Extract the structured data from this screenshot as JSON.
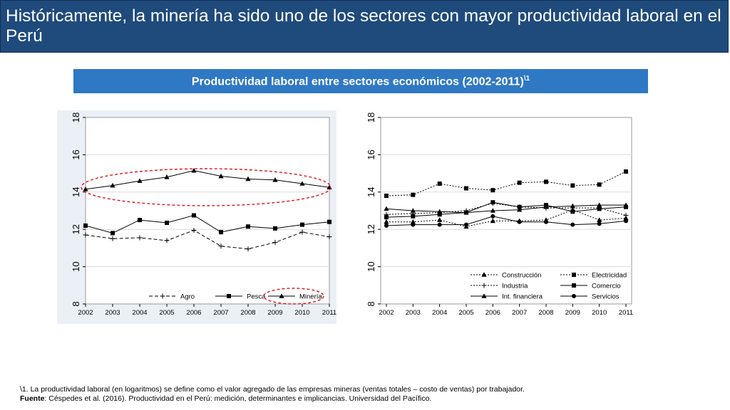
{
  "header": {
    "title": "Históricamente, la minería ha sido uno de los sectores con mayor productividad laboral en el Perú"
  },
  "subtitle": {
    "text": "Productividad laboral entre sectores económicos (2002-2011)",
    "sup": "\\1"
  },
  "colors": {
    "title_bg": "#1f4a7c",
    "subtitle_bg": "#2f78c4",
    "highlight": "#e0141e"
  },
  "chart_data": [
    {
      "type": "line",
      "title": "",
      "xlabel": "",
      "ylabel": "",
      "x": [
        "2002",
        "2003",
        "2004",
        "2005",
        "2006",
        "2007",
        "2008",
        "2009",
        "2010",
        "2011"
      ],
      "ylim": [
        8,
        18
      ],
      "yticks": [
        "8",
        "10",
        "12",
        "14",
        "16",
        "18"
      ],
      "series": [
        {
          "name": "Agro",
          "line": "dash",
          "marker": "plus",
          "values": [
            11.7,
            11.5,
            11.55,
            11.4,
            11.95,
            11.1,
            10.95,
            11.3,
            11.85,
            11.6
          ]
        },
        {
          "name": "Pesca",
          "line": "solid",
          "marker": "square",
          "values": [
            12.2,
            11.8,
            12.5,
            12.35,
            12.75,
            11.85,
            12.15,
            12.05,
            12.25,
            12.4
          ]
        },
        {
          "name": "Minería",
          "line": "solid",
          "marker": "triangle",
          "values": [
            14.15,
            14.35,
            14.6,
            14.8,
            15.15,
            14.85,
            14.7,
            14.65,
            14.45,
            14.25
          ]
        }
      ],
      "annotation": "Minería resaltada con elipse roja"
    },
    {
      "type": "line",
      "title": "",
      "xlabel": "",
      "ylabel": "",
      "x": [
        "2002",
        "2003",
        "2004",
        "2005",
        "2006",
        "2007",
        "2008",
        "2009",
        "2010",
        "2011"
      ],
      "ylim": [
        8,
        18
      ],
      "yticks": [
        "8",
        "10",
        "12",
        "14",
        "16",
        "18"
      ],
      "series": [
        {
          "name": "Construcción",
          "line": "dot",
          "marker": "triangle",
          "values": [
            12.4,
            12.4,
            12.5,
            12.15,
            12.45,
            12.45,
            12.5,
            13.05,
            12.5,
            12.6
          ]
        },
        {
          "name": "Electricidad",
          "line": "dot",
          "marker": "square",
          "values": [
            13.8,
            13.85,
            14.45,
            14.2,
            14.1,
            14.5,
            14.55,
            14.35,
            14.4,
            15.1
          ]
        },
        {
          "name": "Industria",
          "line": "dot",
          "marker": "plus",
          "values": [
            12.8,
            12.85,
            12.9,
            13.0,
            13.4,
            13.2,
            13.15,
            13.15,
            13.15,
            12.75
          ]
        },
        {
          "name": "Comercio",
          "line": "solid",
          "marker": "square",
          "values": [
            12.65,
            12.7,
            12.8,
            12.9,
            13.45,
            13.2,
            13.3,
            12.95,
            13.1,
            13.2
          ]
        },
        {
          "name": "Int. financiera",
          "line": "solid",
          "marker": "triangle",
          "values": [
            13.1,
            13.0,
            12.95,
            12.9,
            13.0,
            13.05,
            13.2,
            13.25,
            13.3,
            13.3
          ]
        },
        {
          "name": "Servicios",
          "line": "solid",
          "marker": "circle",
          "values": [
            12.2,
            12.25,
            12.25,
            12.25,
            12.7,
            12.4,
            12.4,
            12.25,
            12.3,
            12.45
          ]
        }
      ]
    }
  ],
  "footnote": {
    "line1": "\\1. La productividad laboral (en logaritmos) se define como el valor agregado de las empresas mineras (ventas totales – costo de ventas) por trabajador.",
    "source_label": "Fuente",
    "source_text": ": Céspedes et al. (2016). Productividad en el Perú: medición, determinantes e implicancias. Universidad del Pacífico."
  }
}
